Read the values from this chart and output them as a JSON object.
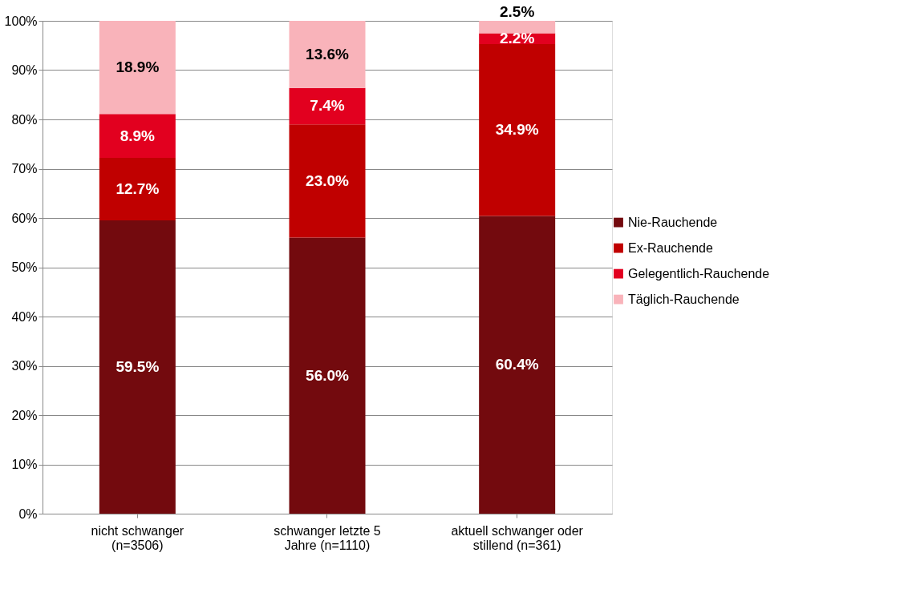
{
  "chart_data": {
    "type": "bar",
    "stacked": true,
    "categories": [
      "nicht schwanger (n=3506)",
      "schwanger letzte 5 Jahre (n=1110)",
      "aktuell schwanger oder stillend (n=361)"
    ],
    "series": [
      {
        "name": "Nie-Rauchende",
        "color": "#730a0e",
        "values": [
          59.5,
          56.0,
          60.4
        ],
        "value_labels": [
          "59.5%",
          "56.0%",
          "60.4%"
        ]
      },
      {
        "name": "Ex-Rauchende",
        "color": "#c00000",
        "values": [
          12.7,
          23.0,
          34.9
        ],
        "value_labels": [
          "12.7%",
          "23.0%",
          "34.9%"
        ]
      },
      {
        "name": "Gelegentlich-Rauchende",
        "color": "#e2001f",
        "values": [
          8.9,
          7.4,
          2.2
        ],
        "value_labels": [
          "8.9%",
          "7.4%",
          "2.2%"
        ]
      },
      {
        "name": "Täglich-Rauchende",
        "color": "#f9b3ba",
        "values": [
          18.9,
          13.6,
          2.5
        ],
        "value_labels": [
          "18.9%",
          "13.6%",
          "2.5%"
        ]
      }
    ],
    "ylim": [
      0,
      100
    ],
    "yticks": [
      {
        "value": 0,
        "label": "0%"
      },
      {
        "value": 10,
        "label": "10%"
      },
      {
        "value": 20,
        "label": "20%"
      },
      {
        "value": 30,
        "label": "30%"
      },
      {
        "value": 40,
        "label": "40%"
      },
      {
        "value": 50,
        "label": "50%"
      },
      {
        "value": 60,
        "label": "60%"
      },
      {
        "value": 70,
        "label": "70%"
      },
      {
        "value": 80,
        "label": "80%"
      },
      {
        "value": 90,
        "label": "90%"
      },
      {
        "value": 100,
        "label": "100%"
      }
    ],
    "grid": "y",
    "legend": "right"
  }
}
